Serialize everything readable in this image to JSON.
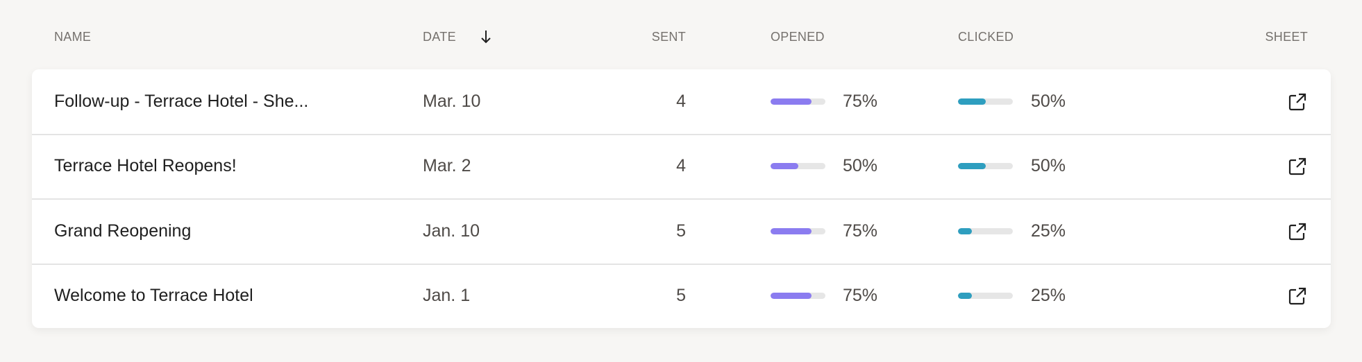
{
  "columns": {
    "name": "NAME",
    "date": "DATE",
    "sent": "SENT",
    "opened": "OPENED",
    "clicked": "CLICKED",
    "sheet": "SHEET"
  },
  "sort": {
    "column": "date",
    "direction": "descending",
    "icon": "arrow-down-icon"
  },
  "colors": {
    "opened": "#8b7cf0",
    "clicked": "#2e9ebf",
    "track": "#e6e6e6"
  },
  "rows": [
    {
      "name": "Follow-up - Terrace Hotel - She...",
      "date": "Mar. 10",
      "sent": "4",
      "opened": 75,
      "opened_label": "75%",
      "clicked": 50,
      "clicked_label": "50%",
      "sheet_icon": "external-link-icon"
    },
    {
      "name": "Terrace Hotel Reopens!",
      "date": "Mar. 2",
      "sent": "4",
      "opened": 50,
      "opened_label": "50%",
      "clicked": 50,
      "clicked_label": "50%",
      "sheet_icon": "external-link-icon"
    },
    {
      "name": "Grand Reopening",
      "date": "Jan. 10",
      "sent": "5",
      "opened": 75,
      "opened_label": "75%",
      "clicked": 25,
      "clicked_label": "25%",
      "sheet_icon": "external-link-icon"
    },
    {
      "name": "Welcome to Terrace Hotel",
      "date": "Jan. 1",
      "sent": "5",
      "opened": 75,
      "opened_label": "75%",
      "clicked": 25,
      "clicked_label": "25%",
      "sheet_icon": "external-link-icon"
    }
  ]
}
